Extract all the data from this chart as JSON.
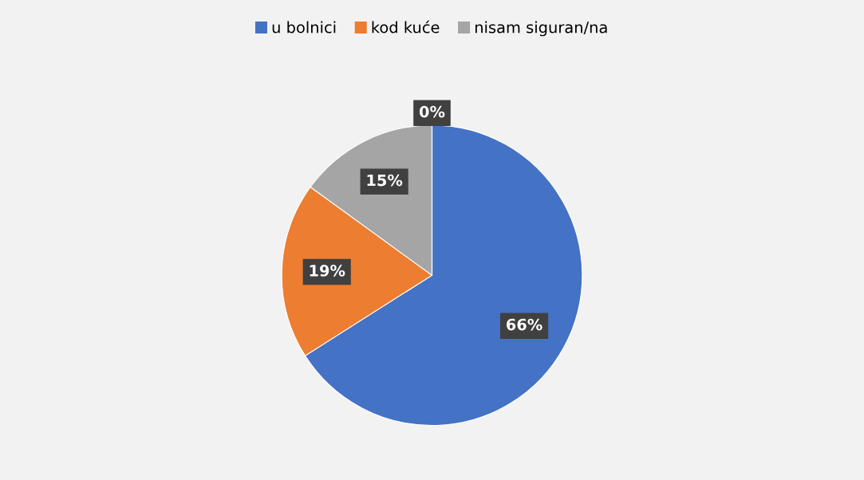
{
  "chart_data": {
    "type": "pie",
    "categories": [
      "u bolnici",
      "kod kuće",
      "nisam siguran/na",
      null
    ],
    "values": [
      66,
      19,
      15,
      0
    ],
    "colors": [
      "#4472c4",
      "#ed7d31",
      "#a5a5a5",
      "#ffc000"
    ],
    "value_labels": [
      "66%",
      "19%",
      "15%",
      "0%"
    ],
    "legend": "top"
  }
}
